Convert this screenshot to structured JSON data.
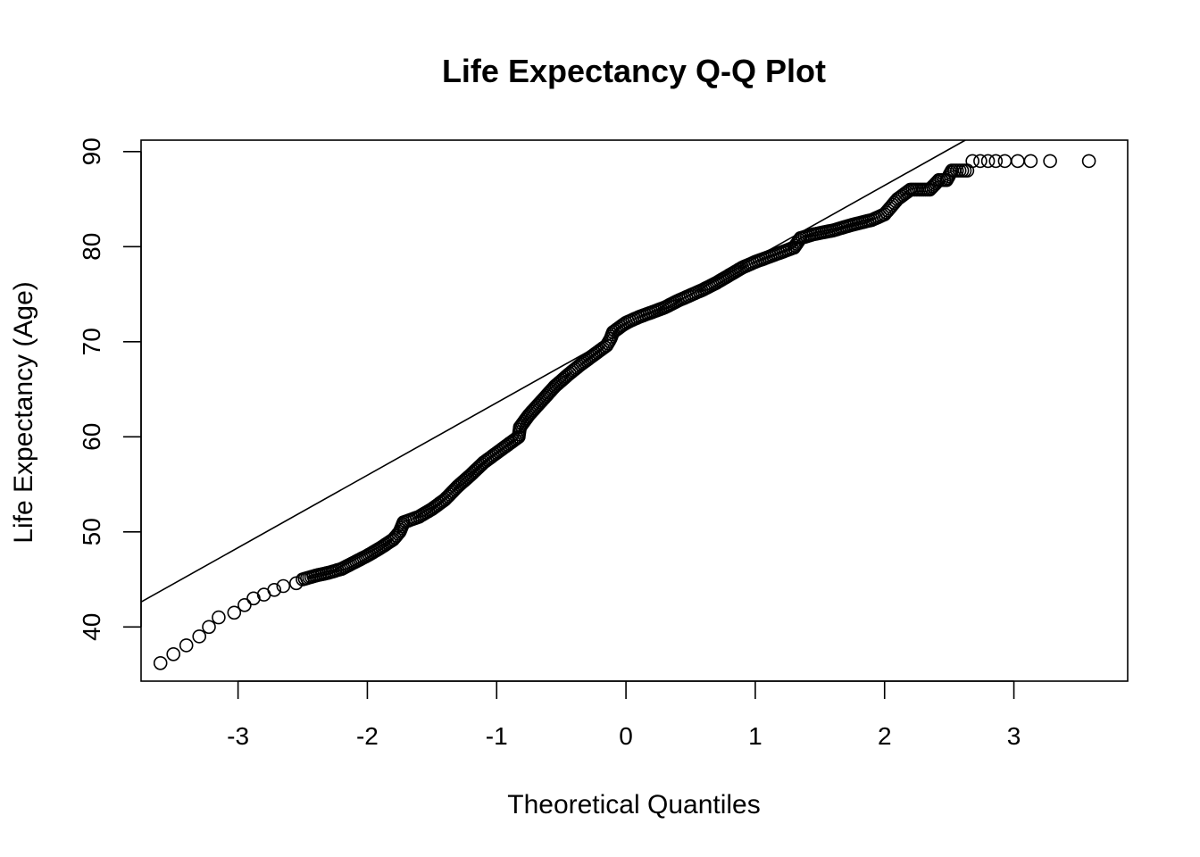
{
  "chart_data": {
    "type": "scatter",
    "title": "Life Expectancy Q-Q Plot",
    "xlabel": "Theoretical Quantiles",
    "ylabel": "Life Expectancy (Age)",
    "xlim": [
      -3.75,
      3.88
    ],
    "ylim": [
      34.3,
      91.2
    ],
    "xticks": [
      -3,
      -2,
      -1,
      0,
      1,
      2,
      3
    ],
    "yticks": [
      40,
      50,
      60,
      70,
      80,
      90
    ],
    "reference_line": {
      "slope": 7.62,
      "intercept": 71.2
    },
    "grid": false,
    "legend": "none",
    "curve": [
      [
        -3.6,
        36.2
      ],
      [
        -3.3,
        39.0
      ],
      [
        -3.15,
        41.0
      ],
      [
        -3.03,
        41.5
      ],
      [
        -2.95,
        42.3
      ],
      [
        -2.88,
        43.0
      ],
      [
        -2.8,
        43.4
      ],
      [
        -2.72,
        43.9
      ],
      [
        -2.65,
        44.3
      ],
      [
        -2.55,
        44.6
      ],
      [
        -2.5,
        45.0
      ],
      [
        -2.4,
        45.4
      ],
      [
        -2.3,
        45.7
      ],
      [
        -2.2,
        46.1
      ],
      [
        -2.1,
        46.8
      ],
      [
        -2.0,
        47.5
      ],
      [
        -1.9,
        48.3
      ],
      [
        -1.8,
        49.2
      ],
      [
        -1.75,
        50.0
      ],
      [
        -1.72,
        51.0
      ],
      [
        -1.6,
        51.6
      ],
      [
        -1.5,
        52.4
      ],
      [
        -1.4,
        53.4
      ],
      [
        -1.3,
        54.8
      ],
      [
        -1.2,
        56.0
      ],
      [
        -1.1,
        57.3
      ],
      [
        -1.0,
        58.3
      ],
      [
        -0.9,
        59.3
      ],
      [
        -0.83,
        60.0
      ],
      [
        -0.82,
        61.0
      ],
      [
        -0.75,
        62.3
      ],
      [
        -0.65,
        63.8
      ],
      [
        -0.55,
        65.3
      ],
      [
        -0.45,
        66.5
      ],
      [
        -0.35,
        67.6
      ],
      [
        -0.25,
        68.6
      ],
      [
        -0.15,
        69.6
      ],
      [
        -0.12,
        70.3
      ],
      [
        -0.1,
        71.0
      ],
      [
        0.0,
        72.0
      ],
      [
        0.1,
        72.6
      ],
      [
        0.2,
        73.1
      ],
      [
        0.3,
        73.6
      ],
      [
        0.4,
        74.3
      ],
      [
        0.5,
        74.9
      ],
      [
        0.6,
        75.5
      ],
      [
        0.7,
        76.2
      ],
      [
        0.8,
        77.0
      ],
      [
        0.9,
        77.8
      ],
      [
        1.0,
        78.4
      ],
      [
        1.1,
        78.9
      ],
      [
        1.2,
        79.4
      ],
      [
        1.3,
        79.9
      ],
      [
        1.35,
        80.9
      ],
      [
        1.45,
        81.3
      ],
      [
        1.6,
        81.7
      ],
      [
        1.75,
        82.3
      ],
      [
        1.9,
        82.8
      ],
      [
        2.0,
        83.4
      ],
      [
        2.05,
        84.2
      ],
      [
        2.1,
        85.0
      ],
      [
        2.2,
        86.0
      ],
      [
        2.35,
        86.0
      ],
      [
        2.42,
        87.0
      ],
      [
        2.48,
        87.0
      ],
      [
        2.52,
        88.0
      ],
      [
        2.58,
        88.0
      ],
      [
        2.64,
        88.0
      ]
    ],
    "outliers_top": [
      [
        2.68,
        89.0
      ],
      [
        2.74,
        89.0
      ],
      [
        2.8,
        89.0
      ],
      [
        2.86,
        89.0
      ],
      [
        2.93,
        89.0
      ],
      [
        3.03,
        89.0
      ],
      [
        3.13,
        89.0
      ],
      [
        3.28,
        89.0
      ],
      [
        3.58,
        89.0
      ]
    ]
  }
}
